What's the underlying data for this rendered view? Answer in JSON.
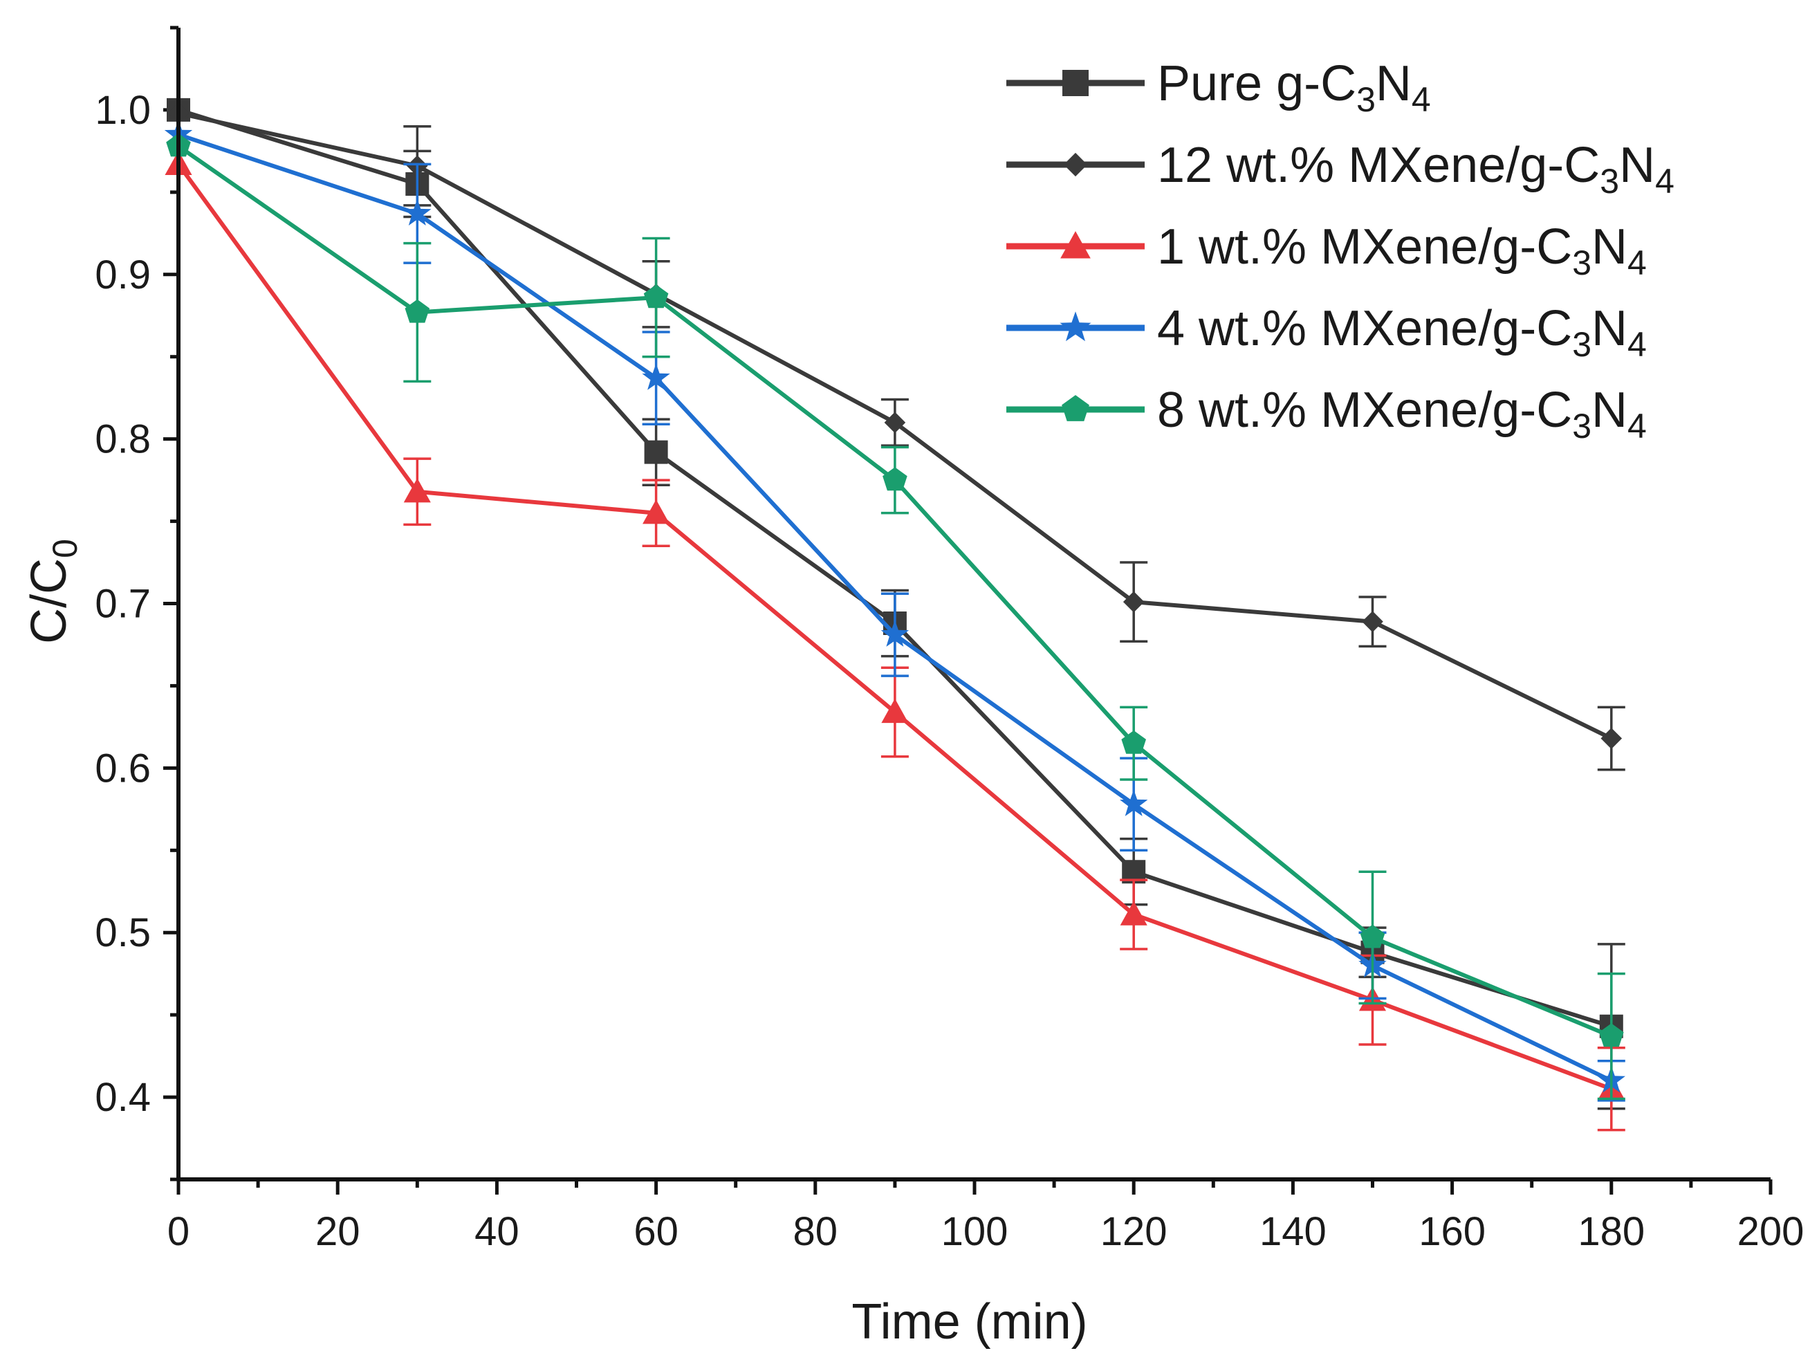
{
  "chart_data": {
    "type": "line",
    "title": "",
    "xlabel": "Time (min)",
    "ylabel": "C/C0",
    "xlim": [
      0,
      200
    ],
    "ylim": [
      0.35,
      1.05
    ],
    "x_ticks": [
      0,
      20,
      40,
      60,
      80,
      100,
      120,
      140,
      160,
      180,
      200
    ],
    "x_tick_labels": [
      "0",
      "20",
      "40",
      "60",
      "80",
      "100",
      "120",
      "140",
      "160",
      "180",
      "200"
    ],
    "y_ticks": [
      0.4,
      0.5,
      0.6,
      0.7,
      0.8,
      0.9,
      1.0
    ],
    "y_tick_labels": [
      "0.4",
      "0.5",
      "0.6",
      "0.7",
      "0.8",
      "0.9",
      "1.0"
    ],
    "legend_position": "top-right",
    "x": [
      0,
      30,
      60,
      90,
      120,
      150,
      180
    ],
    "series": [
      {
        "name": "Pure g-C3N4",
        "legend": {
          "prefix": "Pure g-C",
          "sub1": "3",
          "mid": "N",
          "sub2": "4"
        },
        "color": "#3a3a3a",
        "marker": "square",
        "values": [
          1.0,
          0.955,
          0.792,
          0.688,
          0.537,
          0.488,
          0.443
        ],
        "errors": [
          0,
          0.02,
          0.02,
          0.02,
          0.02,
          0.015,
          0.05
        ]
      },
      {
        "name": "12 wt.% MXene/g-C3N4",
        "legend": {
          "prefix": "12 wt.% MXene/g-C",
          "sub1": "3",
          "mid": "N",
          "sub2": "4"
        },
        "color": "#3a3a3a",
        "marker": "diamond",
        "values": [
          0.998,
          0.966,
          0.888,
          0.81,
          0.701,
          0.689,
          0.618
        ],
        "errors": [
          0,
          0.024,
          0.02,
          0.014,
          0.024,
          0.015,
          0.019
        ]
      },
      {
        "name": "1 wt.% MXene/g-C3N4",
        "legend": {
          "prefix": "1 wt.% MXene/g-C",
          "sub1": "3",
          "mid": "N",
          "sub2": "4"
        },
        "color": "#e8383d",
        "marker": "triangle",
        "values": [
          0.967,
          0.768,
          0.755,
          0.634,
          0.511,
          0.459,
          0.405
        ],
        "errors": [
          0,
          0.02,
          0.02,
          0.027,
          0.021,
          0.027,
          0.025
        ]
      },
      {
        "name": "4 wt.% MXene/g-C3N4",
        "legend": {
          "prefix": "4 wt.% MXene/g-C",
          "sub1": "3",
          "mid": "N",
          "sub2": "4"
        },
        "color": "#1f6fd1",
        "marker": "star",
        "values": [
          0.985,
          0.937,
          0.837,
          0.681,
          0.578,
          0.48,
          0.41
        ],
        "errors": [
          0,
          0.03,
          0.028,
          0.025,
          0.028,
          0.02,
          0.012
        ]
      },
      {
        "name": "8 wt.% MXene/g-C3N4",
        "legend": {
          "prefix": "8 wt.% MXene/g-C",
          "sub1": "3",
          "mid": "N",
          "sub2": "4"
        },
        "color": "#1a9e6e",
        "marker": "pentagon",
        "values": [
          0.978,
          0.877,
          0.886,
          0.775,
          0.615,
          0.497,
          0.437
        ],
        "errors": [
          0,
          0.042,
          0.036,
          0.02,
          0.022,
          0.04,
          0.038
        ]
      }
    ]
  }
}
